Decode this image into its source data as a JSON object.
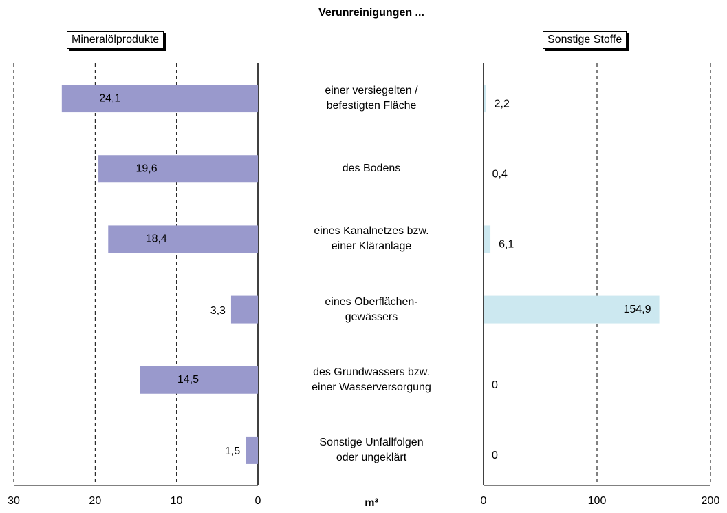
{
  "chart_data": {
    "type": "bar",
    "orientation": "horizontal",
    "title": "Verunreinigungen ...",
    "x_label": "m³",
    "categories": [
      "einer versiegelten /\nbefestigten Fläche",
      "des Bodens",
      "eines Kanalnetzes bzw.\neiner Kläranlage",
      "eines Oberflächen-\ngewässers",
      "des Grundwassers bzw.\neiner Wasserversorgung",
      "Sonstige Unfallfolgen\noder ungeklärt"
    ],
    "series": [
      {
        "name": "Mineralölprodukte",
        "color": "#9999cc",
        "values": [
          24.1,
          19.6,
          18.4,
          3.3,
          14.5,
          1.5
        ],
        "value_labels": [
          "24,1",
          "19,6",
          "18,4",
          "3,3",
          "14,5",
          "1,5"
        ],
        "xlim": [
          30,
          0
        ],
        "xticks": [
          30,
          20,
          10,
          0
        ]
      },
      {
        "name": "Sonstige Stoffe",
        "color": "#cce8f0",
        "values": [
          2.2,
          0.4,
          6.1,
          154.9,
          0,
          0
        ],
        "value_labels": [
          "2,2",
          "0,4",
          "6,1",
          "154,9",
          "0",
          "0"
        ],
        "xlim": [
          0,
          200
        ],
        "xticks": [
          0,
          100,
          200
        ]
      }
    ]
  }
}
